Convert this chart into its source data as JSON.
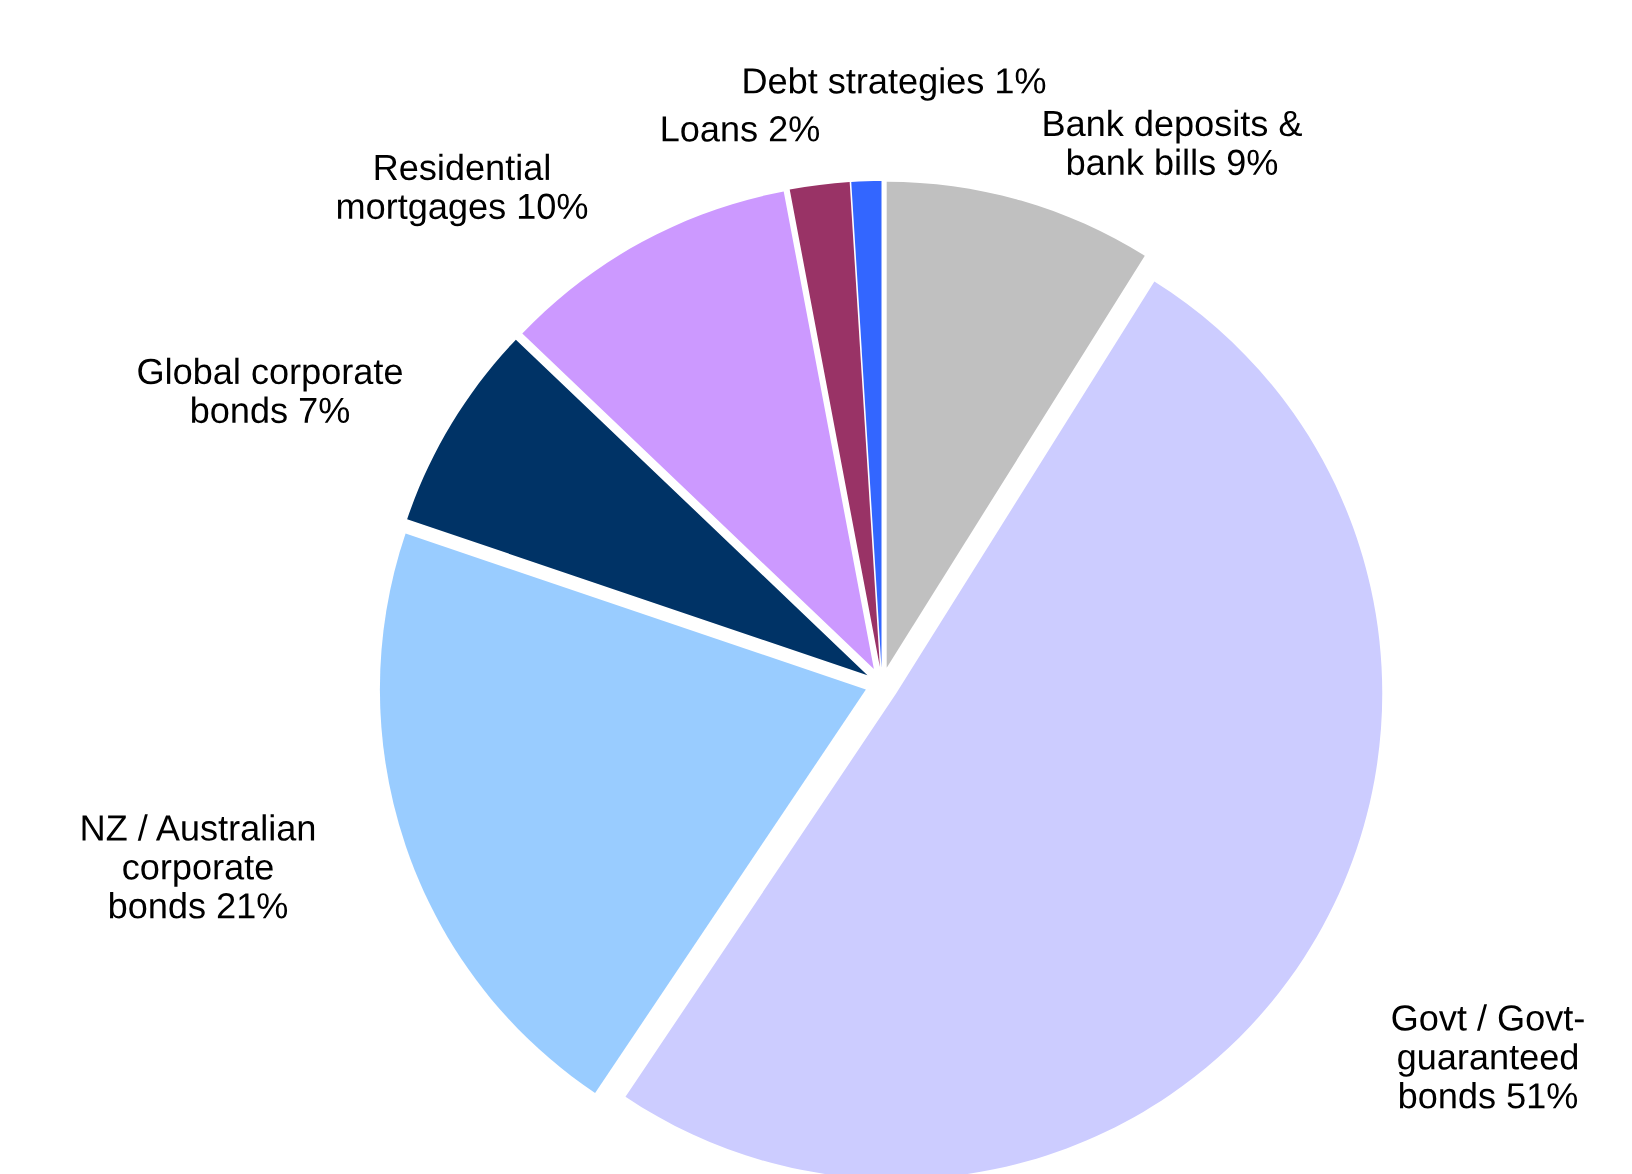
{
  "chart_data": {
    "type": "pie",
    "categories": [
      "Bank deposits &\nbank bills",
      "Govt / Govt-\nguaranteed\nbonds",
      "NZ / Australian\ncorporate\nbonds",
      "Global corporate\nbonds",
      "Residential\nmortgages",
      "Loans",
      "Debt strategies"
    ],
    "values": [
      9,
      51,
      21,
      7,
      10,
      2,
      1
    ],
    "value_labels": [
      "9%",
      "51%",
      "21%",
      "7%",
      "10%",
      "2%",
      "1%"
    ],
    "colors": [
      "#c0c0c0",
      "#ccccff",
      "#99ccff",
      "#003366",
      "#cc99ff",
      "#993366",
      "#3366ff"
    ],
    "legend": false
  }
}
